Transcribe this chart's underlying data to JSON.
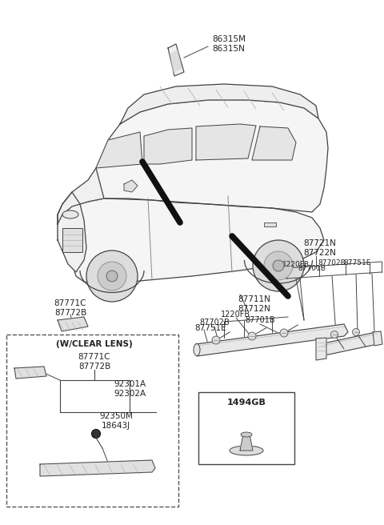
{
  "bg_color": "#ffffff",
  "fig_width": 4.8,
  "fig_height": 6.56,
  "dpi": 100,
  "line_color": "#444444",
  "label_color": "#222222",
  "parts": {
    "86315M_N": "86315M\n86315N",
    "87711N_N": "87711N\n87712N",
    "87771C_B_top": "87771C\n87772B",
    "87751E_left": "87751E",
    "1220FB_left": "1220FB",
    "87702B_left": "87702B",
    "87701B_left": "87701B",
    "87721N_N": "87721N\n87722N",
    "1220FB_right": "1220FB",
    "87702B_right": "87702B",
    "87751E_right": "87751E",
    "87701B_right": "87701B",
    "wclear": "(W/CLEAR LENS)",
    "87771C_B_box": "87771C\n87772B",
    "92301A_A": "92301A\n92302A",
    "92350M_J": "92350M\n18643J",
    "1494GB": "1494GB"
  }
}
